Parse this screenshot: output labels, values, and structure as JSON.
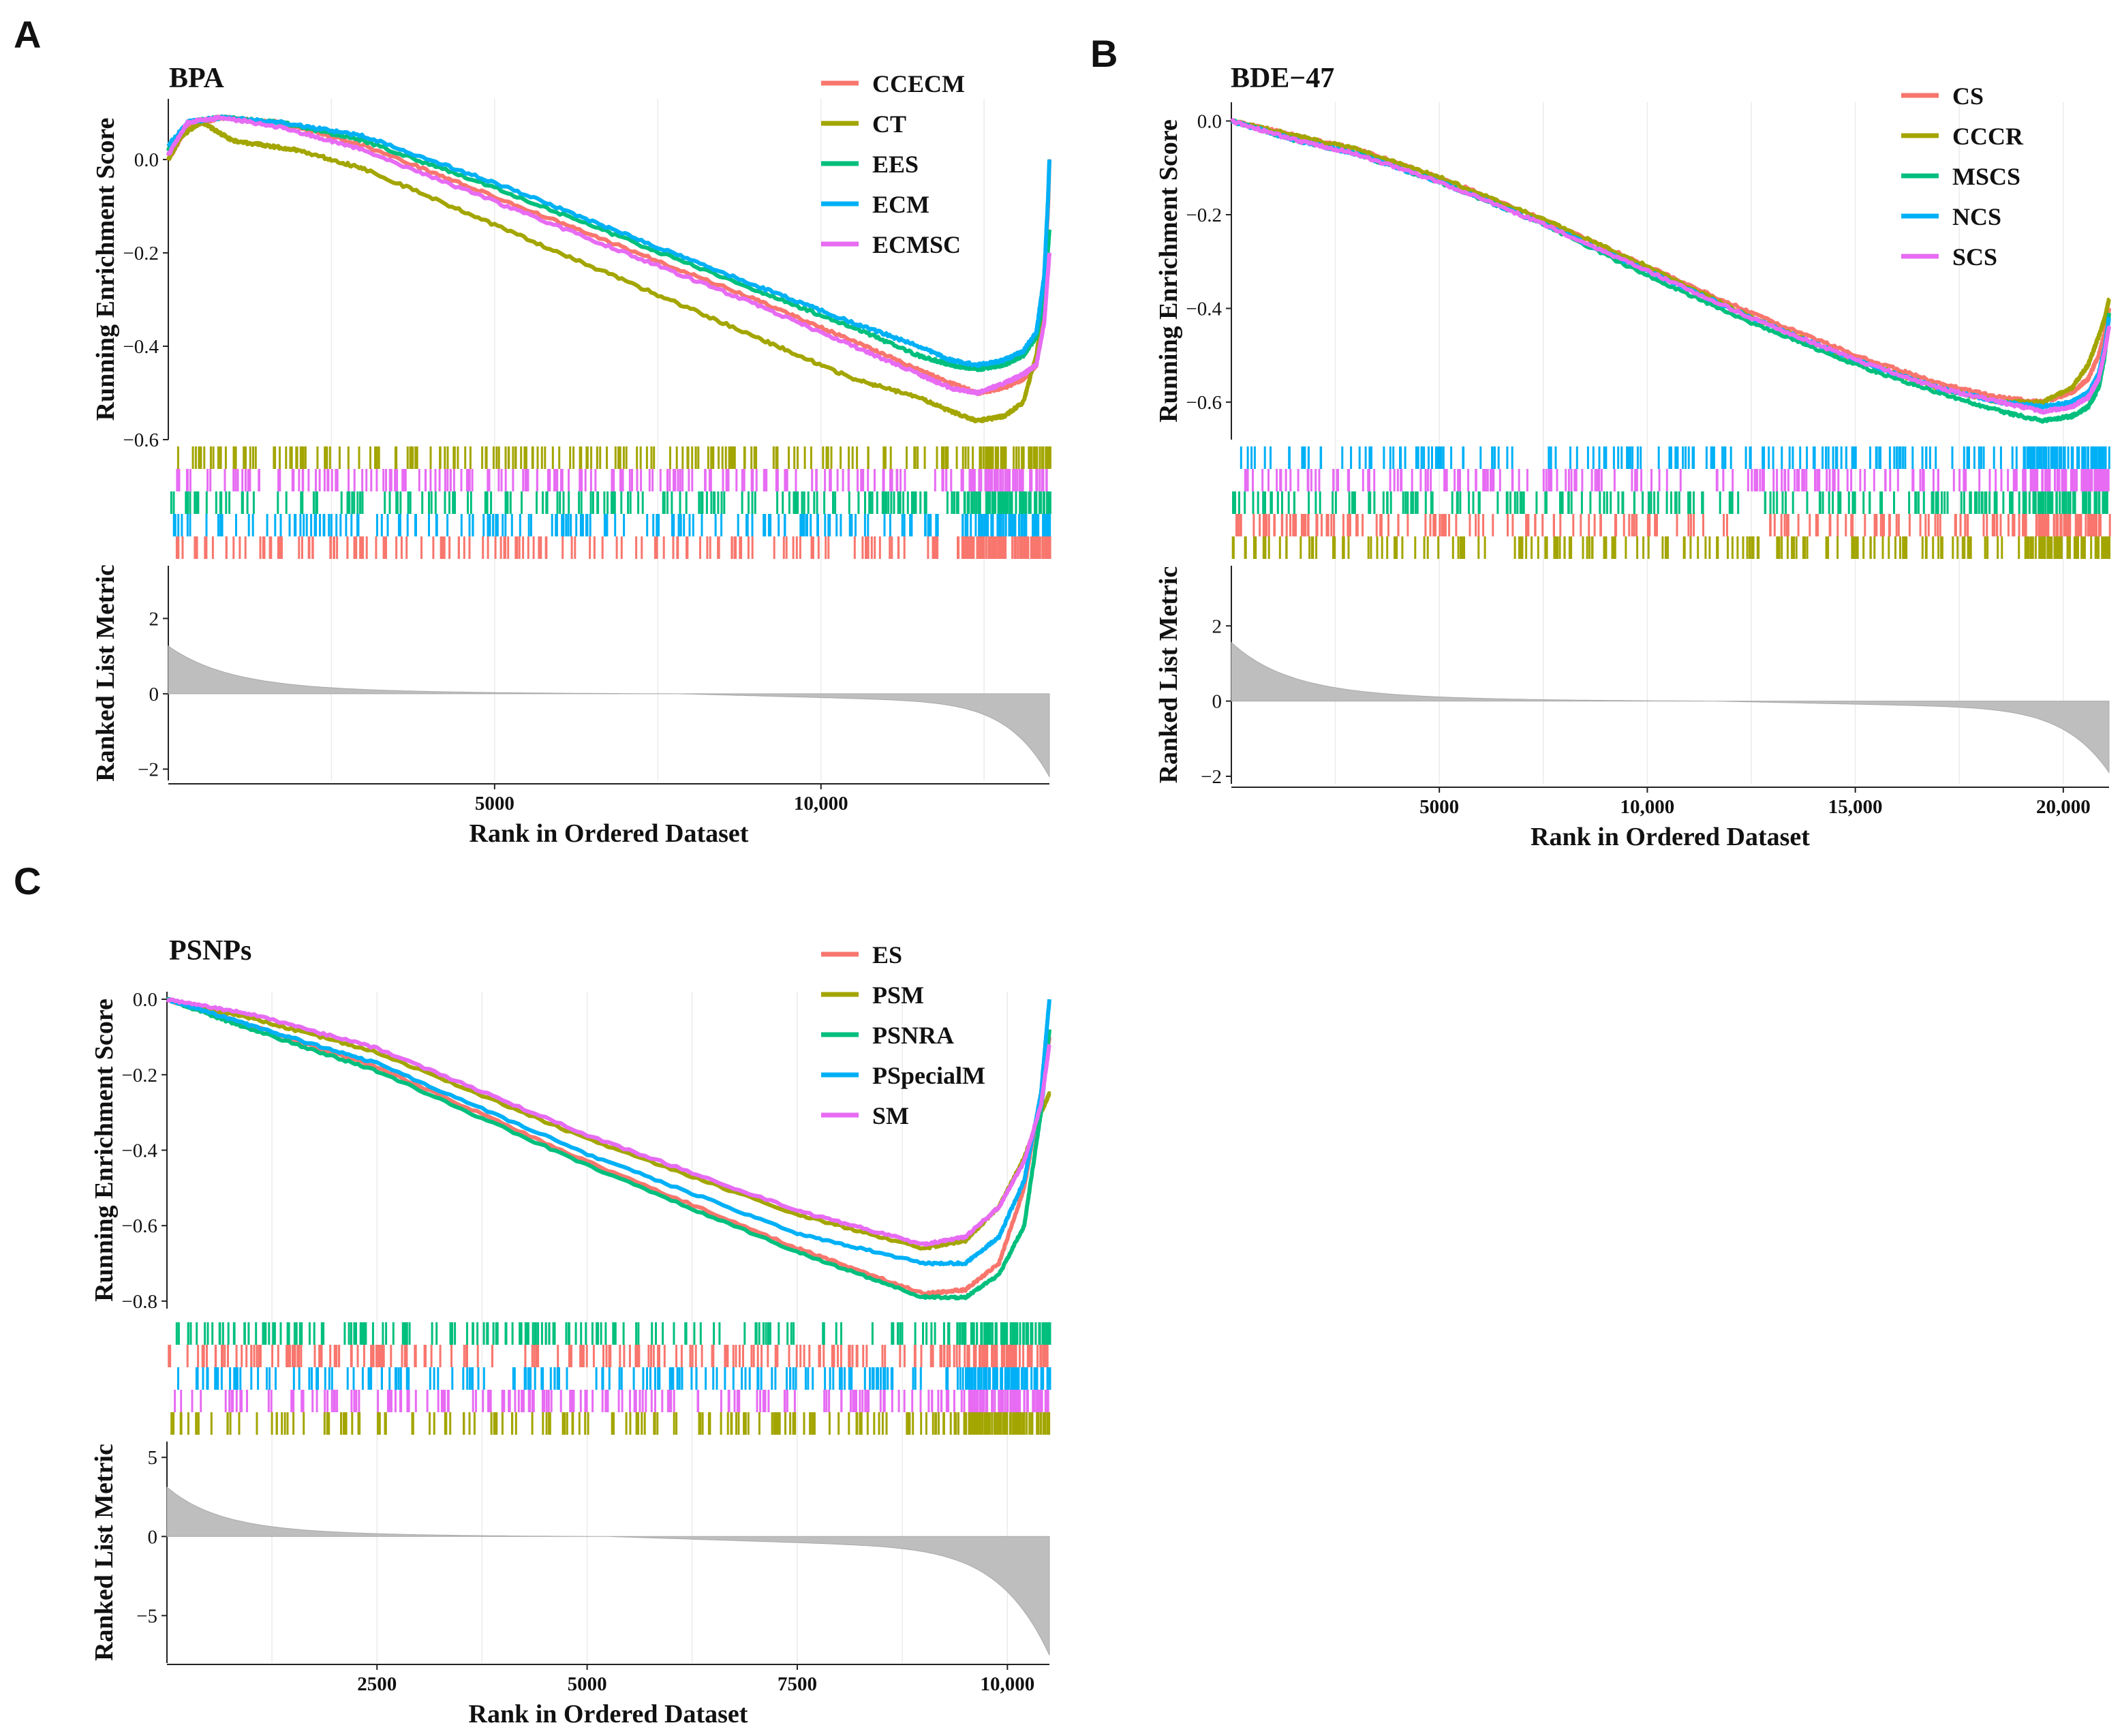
{
  "chart_data": [
    {
      "panel": "A",
      "type": "line",
      "title": "BPA",
      "ylabel_top": "Running Enrichment Score",
      "ylabel_bottom": "Ranked List Metric",
      "xlabel": "Rank in Ordered Dataset",
      "xlim": [
        1,
        13500
      ],
      "ylim_es": [
        -0.6,
        0.13
      ],
      "es_ticks": [
        {
          "v": 0.0,
          "label": "0.0"
        },
        {
          "v": -0.2,
          "label": "−0.2"
        },
        {
          "v": -0.4,
          "label": "−0.4"
        },
        {
          "v": -0.6,
          "label": "−0.6"
        }
      ],
      "ylim_metric": [
        -2.3,
        3.4
      ],
      "metric_ticks": [
        {
          "v": 2,
          "label": "2"
        },
        {
          "v": 0,
          "label": "0"
        },
        {
          "v": -2,
          "label": "−2"
        }
      ],
      "x_ticks": [
        {
          "v": 5000,
          "label": "5000"
        },
        {
          "v": 10000,
          "label": "10,000"
        }
      ],
      "metric": {
        "peak": 1.3,
        "trough": -2.2,
        "zero_at": 0.58
      },
      "legend_position": "top-right",
      "rug_order": [
        "CT",
        "ECMSC",
        "EES",
        "ECM",
        "CCECM"
      ],
      "series": [
        {
          "name": "CCECM",
          "color": "#F8766D",
          "x": [
            1,
            300,
            800,
            1700,
            3000,
            5000,
            7000,
            9000,
            10500,
            11500,
            12000,
            12400,
            12800,
            13100,
            13300,
            13400,
            13480,
            13500
          ],
          "y": [
            0.0,
            0.07,
            0.09,
            0.08,
            0.03,
            -0.08,
            -0.19,
            -0.3,
            -0.39,
            -0.45,
            -0.48,
            -0.5,
            -0.49,
            -0.47,
            -0.44,
            -0.32,
            -0.1,
            0.0
          ]
        },
        {
          "name": "CT",
          "color": "#A3A500",
          "x": [
            1,
            200,
            500,
            1000,
            1500,
            2000,
            3000,
            5000,
            7000,
            9000,
            10500,
            11500,
            12000,
            12400,
            12800,
            13100,
            13300,
            13420,
            13500
          ],
          "y": [
            0.0,
            0.05,
            0.08,
            0.04,
            0.03,
            0.02,
            -0.02,
            -0.14,
            -0.26,
            -0.38,
            -0.47,
            -0.51,
            -0.54,
            -0.56,
            -0.55,
            -0.52,
            -0.42,
            -0.3,
            -0.2
          ]
        },
        {
          "name": "EES",
          "color": "#00BF7D",
          "x": [
            1,
            300,
            800,
            1700,
            3000,
            5000,
            7000,
            9000,
            10500,
            11500,
            12000,
            12400,
            12800,
            13100,
            13300,
            13420,
            13500
          ],
          "y": [
            0.02,
            0.08,
            0.09,
            0.08,
            0.04,
            -0.06,
            -0.17,
            -0.28,
            -0.36,
            -0.42,
            -0.44,
            -0.45,
            -0.44,
            -0.42,
            -0.38,
            -0.3,
            -0.15
          ]
        },
        {
          "name": "ECM",
          "color": "#00B0F6",
          "x": [
            1,
            300,
            800,
            1700,
            3000,
            5000,
            7000,
            9000,
            10500,
            11500,
            12000,
            12400,
            12800,
            13100,
            13300,
            13420,
            13480,
            13500
          ],
          "y": [
            0.03,
            0.08,
            0.09,
            0.08,
            0.05,
            -0.05,
            -0.16,
            -0.27,
            -0.35,
            -0.4,
            -0.43,
            -0.44,
            -0.43,
            -0.41,
            -0.37,
            -0.25,
            -0.08,
            0.0
          ]
        },
        {
          "name": "ECMSC",
          "color": "#E76BF3",
          "x": [
            1,
            300,
            800,
            1700,
            3000,
            5000,
            7000,
            9000,
            10500,
            11500,
            12000,
            12400,
            12800,
            13100,
            13300,
            13420,
            13500
          ],
          "y": [
            0.01,
            0.08,
            0.09,
            0.07,
            0.02,
            -0.09,
            -0.2,
            -0.31,
            -0.4,
            -0.46,
            -0.49,
            -0.5,
            -0.48,
            -0.46,
            -0.44,
            -0.35,
            -0.2
          ]
        }
      ]
    },
    {
      "panel": "B",
      "type": "line",
      "title": "BDE−47",
      "ylabel_top": "Running Enrichment Score",
      "ylabel_bottom": "Ranked List Metric",
      "xlabel": "Rank in Ordered Dataset",
      "xlim": [
        1,
        21100
      ],
      "ylim_es": [
        -0.68,
        0.04
      ],
      "es_ticks": [
        {
          "v": 0.0,
          "label": "0.0"
        },
        {
          "v": -0.2,
          "label": "−0.2"
        },
        {
          "v": -0.4,
          "label": "−0.4"
        },
        {
          "v": -0.6,
          "label": "−0.6"
        }
      ],
      "ylim_metric": [
        -2.2,
        3.6
      ],
      "metric_ticks": [
        {
          "v": 2,
          "label": "2"
        },
        {
          "v": 0,
          "label": "0"
        },
        {
          "v": -2,
          "label": "−2"
        }
      ],
      "x_ticks": [
        {
          "v": 5000,
          "label": "5000"
        },
        {
          "v": 10000,
          "label": "10,000"
        },
        {
          "v": 15000,
          "label": "15,000"
        },
        {
          "v": 20000,
          "label": "20,000"
        }
      ],
      "metric": {
        "peak": 1.6,
        "trough": -1.9,
        "zero_at": 0.55
      },
      "legend_position": "top-right",
      "rug_order": [
        "NCS",
        "SCS",
        "MSCS",
        "CS",
        "CCCR"
      ],
      "series": [
        {
          "name": "CS",
          "color": "#F8766D",
          "x": [
            1,
            1500,
            3000,
            5000,
            7500,
            10000,
            12500,
            15000,
            17000,
            18500,
            19500,
            20200,
            20600,
            20850,
            21000,
            21100
          ],
          "y": [
            0.0,
            -0.03,
            -0.06,
            -0.12,
            -0.21,
            -0.31,
            -0.41,
            -0.5,
            -0.56,
            -0.59,
            -0.6,
            -0.58,
            -0.55,
            -0.5,
            -0.45,
            -0.4
          ]
        },
        {
          "name": "CCCR",
          "color": "#A3A500",
          "x": [
            1,
            1500,
            3000,
            5000,
            7500,
            10000,
            12500,
            15000,
            17000,
            18500,
            19500,
            20200,
            20600,
            20850,
            21000,
            21100
          ],
          "y": [
            0.0,
            -0.03,
            -0.06,
            -0.12,
            -0.21,
            -0.31,
            -0.42,
            -0.51,
            -0.57,
            -0.6,
            -0.6,
            -0.57,
            -0.52,
            -0.46,
            -0.42,
            -0.38
          ]
        },
        {
          "name": "MSCS",
          "color": "#00BF7D",
          "x": [
            1,
            1500,
            3000,
            5000,
            7500,
            10000,
            12500,
            15000,
            17000,
            18500,
            19500,
            20200,
            20600,
            20850,
            21000,
            21100
          ],
          "y": [
            0.0,
            -0.04,
            -0.07,
            -0.13,
            -0.22,
            -0.33,
            -0.43,
            -0.52,
            -0.58,
            -0.62,
            -0.64,
            -0.63,
            -0.61,
            -0.57,
            -0.5,
            -0.41
          ]
        },
        {
          "name": "NCS",
          "color": "#00B0F6",
          "x": [
            1,
            1500,
            3000,
            5000,
            7500,
            10000,
            12500,
            15000,
            17000,
            18500,
            19500,
            20200,
            20600,
            20850,
            21000,
            21100
          ],
          "y": [
            0.0,
            -0.04,
            -0.07,
            -0.13,
            -0.22,
            -0.32,
            -0.42,
            -0.51,
            -0.57,
            -0.6,
            -0.61,
            -0.6,
            -0.58,
            -0.54,
            -0.48,
            -0.42
          ]
        },
        {
          "name": "SCS",
          "color": "#E76BF3",
          "x": [
            1,
            1500,
            3000,
            5000,
            7500,
            10000,
            12500,
            15000,
            17000,
            18500,
            19500,
            20200,
            20600,
            20850,
            21000,
            21100
          ],
          "y": [
            0.0,
            -0.04,
            -0.07,
            -0.13,
            -0.22,
            -0.32,
            -0.42,
            -0.51,
            -0.57,
            -0.6,
            -0.62,
            -0.61,
            -0.59,
            -0.55,
            -0.49,
            -0.44
          ]
        }
      ]
    },
    {
      "panel": "C",
      "type": "line",
      "title": "PSNPs",
      "ylabel_top": "Running Enrichment Score",
      "ylabel_bottom": "Ranked List Metric",
      "xlabel": "Rank in Ordered Dataset",
      "xlim": [
        1,
        10500
      ],
      "ylim_es": [
        -0.82,
        0.02
      ],
      "es_ticks": [
        {
          "v": 0.0,
          "label": "0.0"
        },
        {
          "v": -0.2,
          "label": "−0.2"
        },
        {
          "v": -0.4,
          "label": "−0.4"
        },
        {
          "v": -0.6,
          "label": "−0.6"
        },
        {
          "v": -0.8,
          "label": "−0.8"
        }
      ],
      "ylim_metric": [
        -8.0,
        6.0
      ],
      "metric_ticks": [
        {
          "v": 5,
          "label": "5"
        },
        {
          "v": 0,
          "label": "0"
        },
        {
          "v": -5,
          "label": "−5"
        }
      ],
      "x_ticks": [
        {
          "v": 2500,
          "label": "2500"
        },
        {
          "v": 5000,
          "label": "5000"
        },
        {
          "v": 7500,
          "label": "7500"
        },
        {
          "v": 10000,
          "label": "10,000"
        }
      ],
      "metric": {
        "peak": 3.2,
        "trough": -7.5,
        "zero_at": 0.5
      },
      "legend_position": "top-right",
      "rug_order": [
        "PSNRA",
        "ES",
        "PSpecialM",
        "SM",
        "PSM"
      ],
      "series": [
        {
          "name": "ES",
          "color": "#F8766D",
          "x": [
            1,
            1000,
            2500,
            5000,
            7500,
            9000,
            9500,
            9900,
            10200,
            10400,
            10500
          ],
          "y": [
            0.0,
            -0.07,
            -0.18,
            -0.43,
            -0.66,
            -0.78,
            -0.77,
            -0.7,
            -0.5,
            -0.25,
            -0.1
          ]
        },
        {
          "name": "PSM",
          "color": "#A3A500",
          "x": [
            1,
            1000,
            2500,
            5000,
            7500,
            9000,
            9500,
            9900,
            10200,
            10400,
            10500
          ],
          "y": [
            0.0,
            -0.05,
            -0.14,
            -0.37,
            -0.57,
            -0.66,
            -0.64,
            -0.55,
            -0.42,
            -0.3,
            -0.25
          ]
        },
        {
          "name": "PSNRA",
          "color": "#00BF7D",
          "x": [
            1,
            1000,
            2500,
            5000,
            7500,
            9000,
            9500,
            9900,
            10200,
            10400,
            10500
          ],
          "y": [
            0.0,
            -0.08,
            -0.19,
            -0.44,
            -0.67,
            -0.79,
            -0.79,
            -0.73,
            -0.6,
            -0.3,
            -0.08
          ]
        },
        {
          "name": "PSpecialM",
          "color": "#00B0F6",
          "x": [
            1,
            1000,
            2500,
            5000,
            7500,
            9000,
            9500,
            9900,
            10200,
            10400,
            10500
          ],
          "y": [
            0.0,
            -0.07,
            -0.17,
            -0.41,
            -0.62,
            -0.7,
            -0.7,
            -0.63,
            -0.48,
            -0.25,
            0.0
          ]
        },
        {
          "name": "SM",
          "color": "#E76BF3",
          "x": [
            1,
            1000,
            2500,
            5000,
            7500,
            9000,
            9500,
            9900,
            10200,
            10400,
            10500
          ],
          "y": [
            0.0,
            -0.04,
            -0.13,
            -0.36,
            -0.56,
            -0.65,
            -0.63,
            -0.55,
            -0.43,
            -0.28,
            -0.12
          ]
        }
      ]
    }
  ]
}
